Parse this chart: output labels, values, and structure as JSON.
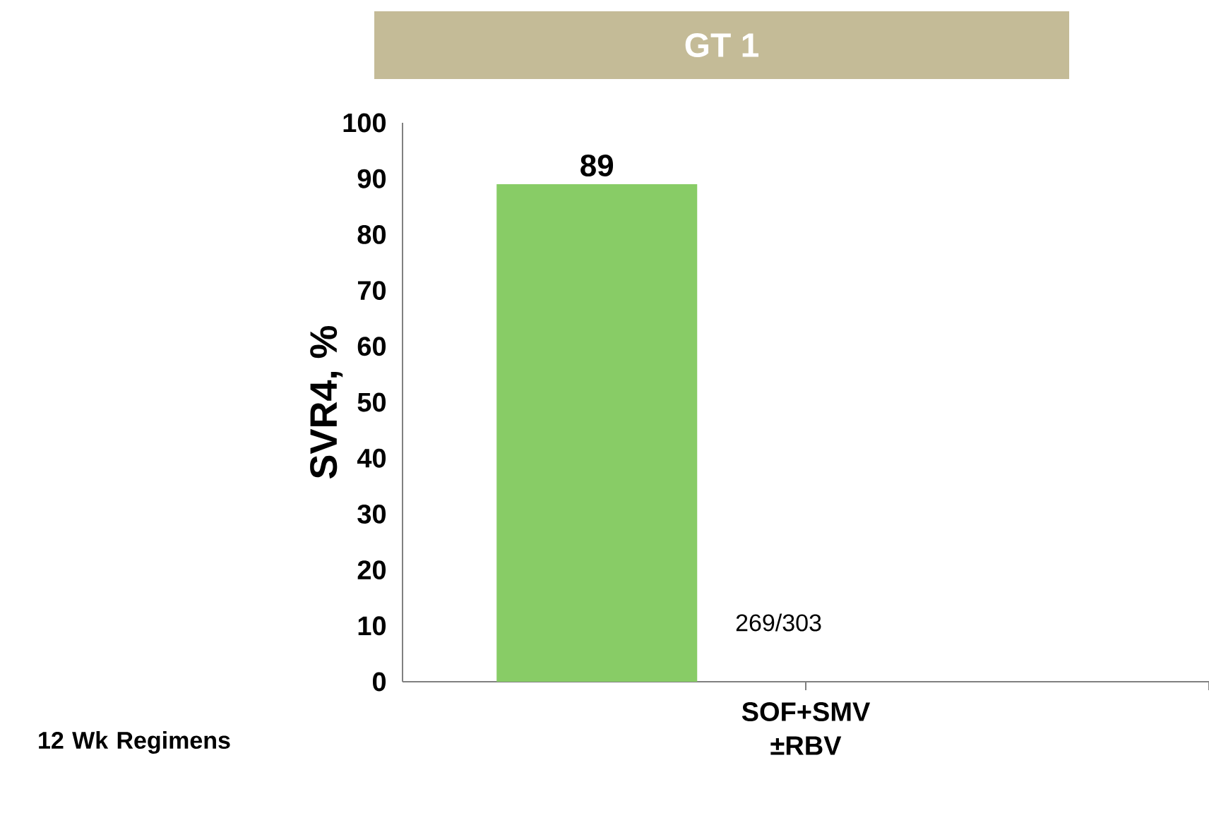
{
  "chart_data": {
    "type": "bar",
    "title": "GT 1",
    "categories": [
      "SOF+SMV ±RBV"
    ],
    "values": [
      89
    ],
    "color": "#88cc66",
    "ylabel": "SVR4, %",
    "ylim": [
      0,
      100
    ],
    "yticks": [
      0,
      10,
      20,
      30,
      40,
      50,
      60,
      70,
      80,
      90,
      100
    ],
    "data_labels": true,
    "annotations": [
      "269/303",
      "12 Wk Regimens"
    ]
  }
}
